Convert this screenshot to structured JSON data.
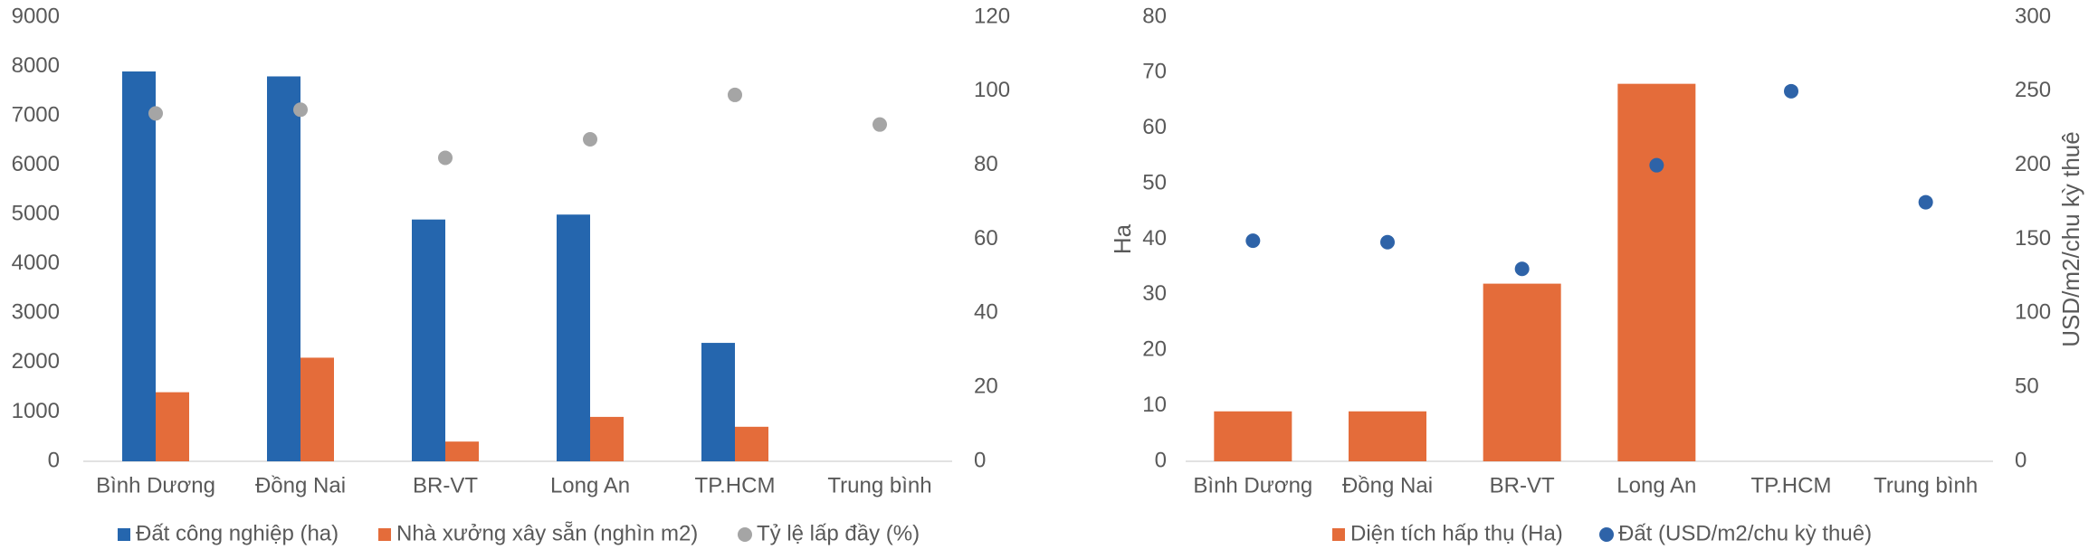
{
  "chart_data": [
    {
      "type": "bar",
      "categories": [
        "Bình Dương",
        "Đồng Nai",
        "BR-VT",
        "Long An",
        "TP.HCM",
        "Trung bình"
      ],
      "series": [
        {
          "name": "Đất công nghiệp (ha)",
          "type": "bar",
          "color": "#2566ae",
          "values": [
            7900,
            7800,
            4900,
            5000,
            2400,
            null
          ]
        },
        {
          "name": "Nhà xưởng xây sẵn (nghìn m2)",
          "type": "bar",
          "color": "#e46c3a",
          "values": [
            1400,
            2100,
            400,
            900,
            700,
            null
          ]
        },
        {
          "name": "Tỷ lệ lấp đầy (%)",
          "type": "scatter",
          "axis": "y2",
          "color": "#a5a5a5",
          "values": [
            94,
            95,
            82,
            87,
            99,
            91
          ]
        }
      ],
      "ylim": [
        0,
        9000
      ],
      "yticks": [
        0,
        1000,
        2000,
        3000,
        4000,
        5000,
        6000,
        7000,
        8000,
        9000
      ],
      "y2lim": [
        0,
        120
      ],
      "y2ticks": [
        0,
        20,
        40,
        60,
        80,
        100,
        120
      ],
      "grid": false,
      "legend": "bottom"
    },
    {
      "type": "bar",
      "categories": [
        "Bình Dương",
        "Đồng Nai",
        "BR-VT",
        "Long An",
        "TP.HCM",
        "Trung bình"
      ],
      "y_label": "Ha",
      "y2_label": "USD/m2/chu kỳ thuê",
      "series": [
        {
          "name": "Diện tích hấp thụ (Ha)",
          "type": "bar",
          "color": "#e46c3a",
          "values": [
            9,
            9,
            32,
            68,
            null,
            null
          ]
        },
        {
          "name": "Đất (USD/m2/chu kỳ thuê)",
          "type": "scatter",
          "axis": "y2",
          "color": "#2e63a8",
          "values": [
            149,
            148,
            130,
            200,
            250,
            175
          ]
        }
      ],
      "ylim": [
        0,
        80
      ],
      "yticks": [
        0,
        10,
        20,
        30,
        40,
        50,
        60,
        70,
        80
      ],
      "y2lim": [
        0,
        300
      ],
      "y2ticks": [
        0,
        50,
        100,
        150,
        200,
        250,
        300
      ],
      "grid": false,
      "legend": "bottom"
    }
  ]
}
